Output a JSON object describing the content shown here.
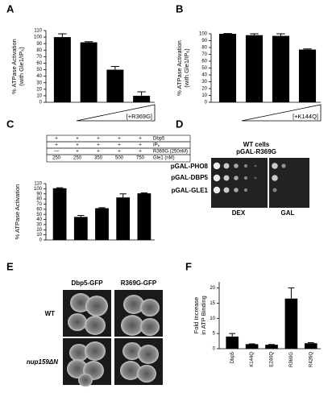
{
  "panel_labels": [
    "A",
    "B",
    "C",
    "D",
    "E",
    "F"
  ],
  "chart_data": [
    {
      "type": "bar",
      "ylabel": [
        "% ATPase Activation",
        "(with Gle1/IP₆)"
      ],
      "values": [
        100,
        92,
        50,
        10
      ],
      "errors": [
        5,
        1,
        5,
        6
      ],
      "color": "#000000",
      "ylim": [
        0,
        110
      ],
      "yticks": [
        0,
        10,
        20,
        30,
        40,
        50,
        60,
        70,
        80,
        90,
        100,
        110
      ],
      "annotation": "[+R369G]"
    },
    {
      "type": "bar",
      "ylabel": [
        "% ATPase Activation",
        "(with Gle1/IP₆)"
      ],
      "values": [
        100,
        98,
        97,
        77
      ],
      "errors": [
        0.5,
        2,
        3,
        1
      ],
      "color": "#000000",
      "ylim": [
        0,
        100
      ],
      "yticks": [
        0,
        10,
        20,
        30,
        40,
        50,
        60,
        70,
        80,
        90,
        100
      ],
      "annotation": "[+K144Q]"
    },
    {
      "type": "bar",
      "ylabel": [
        "% ATPase Activation"
      ],
      "values": [
        101,
        45,
        62,
        83,
        91
      ],
      "errors": [
        1,
        3,
        1,
        7,
        1
      ],
      "color": "#000000",
      "ylim": [
        0,
        110
      ],
      "yticks": [
        0,
        10,
        20,
        30,
        40,
        50,
        60,
        70,
        80,
        90,
        100,
        110
      ]
    },
    {
      "type": "bar",
      "ylabel": [
        "Fold Increase",
        "in ATP Binding"
      ],
      "categories": [
        "Dbp5",
        "K144Q",
        "E240Q",
        "R369G",
        "R426Q"
      ],
      "values": [
        4,
        1.5,
        1.3,
        16.5,
        1.8
      ],
      "errors": [
        1,
        0.1,
        0.1,
        3.5,
        0.2
      ],
      "color": "#000000",
      "ylim": [
        0,
        22
      ],
      "yticks": [
        0,
        5,
        10,
        15,
        20
      ]
    }
  ],
  "c_table": {
    "rows": [
      [
        "+",
        "+",
        "+",
        "+",
        "+",
        "Dbp5"
      ],
      [
        "+",
        "+",
        "+",
        "+",
        "+",
        "IP₆"
      ],
      [
        "—",
        "+",
        "+",
        "+",
        "+",
        "R369G (250nM)"
      ],
      [
        "250",
        "250",
        "350",
        "500",
        "750",
        "Gle1 (nM)"
      ]
    ]
  },
  "panel_d": {
    "title": [
      "WT cells",
      "pGAL-R369G"
    ],
    "rows": [
      "pGAL-PHO8",
      "pGAL-DBP5",
      "pGAL-GLE1"
    ],
    "columns": [
      "DEX",
      "GAL"
    ]
  },
  "panel_e": {
    "columns": [
      "Dbp5-GFP",
      "R369G-GFP"
    ],
    "rows": [
      "WT",
      "nup159ΔN"
    ]
  }
}
